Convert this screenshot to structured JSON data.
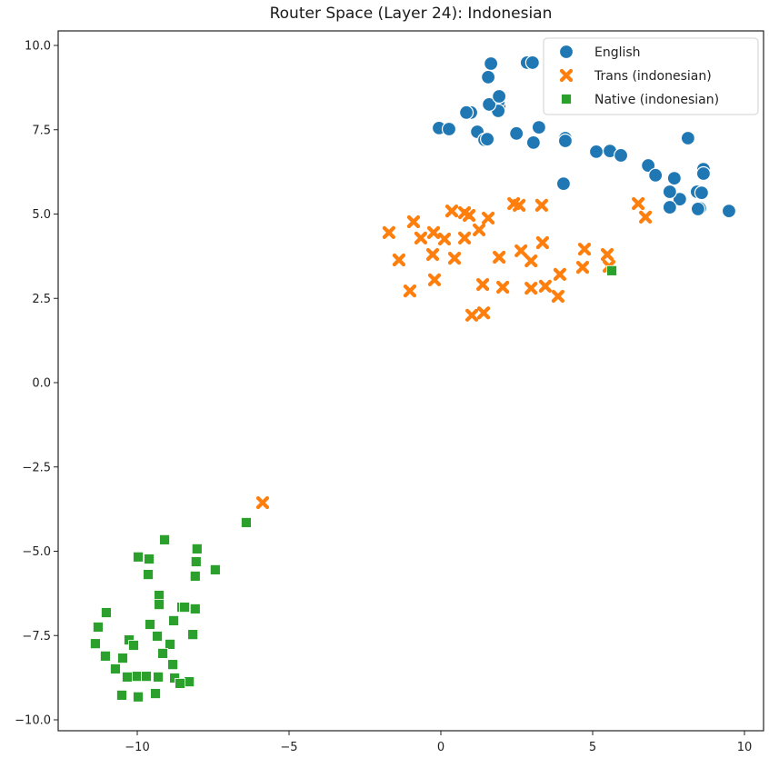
{
  "chart_data": {
    "type": "scatter",
    "title": "Router Space (Layer 24): Indonesian",
    "xlabel": "",
    "ylabel": "",
    "xlim": [
      -12.5,
      10.6
    ],
    "ylim": [
      -10.4,
      10.4
    ],
    "xticks": [
      -10,
      -5,
      0,
      5,
      10
    ],
    "xtick_labels": [
      "−10",
      "−5",
      "0",
      "5",
      "10"
    ],
    "yticks": [
      10.0,
      7.5,
      5.0,
      2.5,
      0.0,
      -2.5,
      -5.0,
      -7.5,
      -10.0
    ],
    "ytick_labels": [
      "10.0",
      "7.5",
      "5.0",
      "2.5",
      "0.0",
      "−2.5",
      "−5.0",
      "−7.5",
      "−10.0"
    ],
    "grid": false,
    "legend_position": "upper right",
    "series": [
      {
        "name": "English",
        "marker": "circle",
        "color": "#1f77b4",
        "points": [
          [
            1.65,
            9.46
          ],
          [
            2.84,
            9.49
          ],
          [
            3.02,
            9.49
          ],
          [
            1.56,
            9.06
          ],
          [
            0.99,
            8.01
          ],
          [
            1.92,
            8.2
          ],
          [
            1.89,
            8.33
          ],
          [
            1.89,
            8.06
          ],
          [
            0.84,
            8.01
          ],
          [
            1.59,
            8.25
          ],
          [
            1.92,
            8.49
          ],
          [
            -0.06,
            7.55
          ],
          [
            0.27,
            7.52
          ],
          [
            1.2,
            7.44
          ],
          [
            1.44,
            7.2
          ],
          [
            1.53,
            7.22
          ],
          [
            2.49,
            7.39
          ],
          [
            3.23,
            7.57
          ],
          [
            3.05,
            7.12
          ],
          [
            4.1,
            7.25
          ],
          [
            4.1,
            7.17
          ],
          [
            5.12,
            6.85
          ],
          [
            5.57,
            6.87
          ],
          [
            5.93,
            6.74
          ],
          [
            6.83,
            6.44
          ],
          [
            7.07,
            6.15
          ],
          [
            7.69,
            6.06
          ],
          [
            8.14,
            7.25
          ],
          [
            7.87,
            5.44
          ],
          [
            7.54,
            5.66
          ],
          [
            8.44,
            5.66
          ],
          [
            8.65,
            6.33
          ],
          [
            8.65,
            6.2
          ],
          [
            8.53,
            5.17
          ],
          [
            8.59,
            5.63
          ],
          [
            8.47,
            5.15
          ],
          [
            7.54,
            5.2
          ],
          [
            9.49,
            5.09
          ],
          [
            4.04,
            5.9
          ]
        ]
      },
      {
        "name": "Trans (indonesian)",
        "marker": "x",
        "color": "#ff7f0e",
        "points": [
          [
            -1.71,
            4.45
          ],
          [
            -0.9,
            4.77
          ],
          [
            -1.38,
            3.64
          ],
          [
            -0.66,
            4.29
          ],
          [
            -1.02,
            2.72
          ],
          [
            -0.24,
            4.45
          ],
          [
            0.12,
            4.26
          ],
          [
            -0.27,
            3.8
          ],
          [
            -0.21,
            3.05
          ],
          [
            0.36,
            5.09
          ],
          [
            0.78,
            5.04
          ],
          [
            0.93,
            4.96
          ],
          [
            0.78,
            4.29
          ],
          [
            0.45,
            3.69
          ],
          [
            1.26,
            4.53
          ],
          [
            1.56,
            4.88
          ],
          [
            1.92,
            3.72
          ],
          [
            1.38,
            2.91
          ],
          [
            1.02,
            2.0
          ],
          [
            1.41,
            2.07
          ],
          [
            2.04,
            2.83
          ],
          [
            2.4,
            5.31
          ],
          [
            2.58,
            5.26
          ],
          [
            2.64,
            3.91
          ],
          [
            2.97,
            3.61
          ],
          [
            3.32,
            5.26
          ],
          [
            3.35,
            4.15
          ],
          [
            2.97,
            2.8
          ],
          [
            3.44,
            2.86
          ],
          [
            3.86,
            2.56
          ],
          [
            3.92,
            3.21
          ],
          [
            4.73,
            3.96
          ],
          [
            5.48,
            3.8
          ],
          [
            5.54,
            3.45
          ],
          [
            4.67,
            3.42
          ],
          [
            6.5,
            5.31
          ],
          [
            6.74,
            4.91
          ],
          [
            -5.87,
            -3.56
          ]
        ]
      },
      {
        "name": "Native (indonesian)",
        "marker": "square",
        "color": "#2ca02c",
        "points": [
          [
            5.63,
            3.32
          ],
          [
            -6.41,
            -4.15
          ],
          [
            -9.1,
            -4.66
          ],
          [
            -9.97,
            -5.17
          ],
          [
            -9.61,
            -5.23
          ],
          [
            -8.03,
            -4.93
          ],
          [
            -8.06,
            -5.31
          ],
          [
            -9.64,
            -5.69
          ],
          [
            -8.09,
            -5.74
          ],
          [
            -7.43,
            -5.55
          ],
          [
            -9.28,
            -6.31
          ],
          [
            -9.28,
            -6.58
          ],
          [
            -8.53,
            -6.66
          ],
          [
            -8.44,
            -6.66
          ],
          [
            -8.09,
            -6.71
          ],
          [
            -11.02,
            -6.82
          ],
          [
            -11.29,
            -7.25
          ],
          [
            -10.27,
            -7.63
          ],
          [
            -9.58,
            -7.17
          ],
          [
            -8.8,
            -7.06
          ],
          [
            -8.17,
            -7.47
          ],
          [
            -11.38,
            -7.74
          ],
          [
            -10.12,
            -7.79
          ],
          [
            -9.34,
            -7.52
          ],
          [
            -8.92,
            -7.76
          ],
          [
            -9.16,
            -8.03
          ],
          [
            -10.48,
            -8.17
          ],
          [
            -11.05,
            -8.11
          ],
          [
            -10.03,
            -8.71
          ],
          [
            -8.83,
            -8.36
          ],
          [
            -10.72,
            -8.49
          ],
          [
            -10.33,
            -8.73
          ],
          [
            -9.7,
            -8.71
          ],
          [
            -9.31,
            -8.73
          ],
          [
            -8.77,
            -8.76
          ],
          [
            -8.29,
            -8.87
          ],
          [
            -8.59,
            -8.92
          ],
          [
            -10.51,
            -9.27
          ],
          [
            -9.97,
            -9.32
          ],
          [
            -9.4,
            -9.22
          ]
        ]
      }
    ]
  },
  "legend": {
    "items": [
      {
        "label": "English",
        "marker": "circle",
        "color": "#1f77b4"
      },
      {
        "label": "Trans (indonesian)",
        "marker": "x",
        "color": "#ff7f0e"
      },
      {
        "label": "Native (indonesian)",
        "marker": "square",
        "color": "#2ca02c"
      }
    ]
  }
}
